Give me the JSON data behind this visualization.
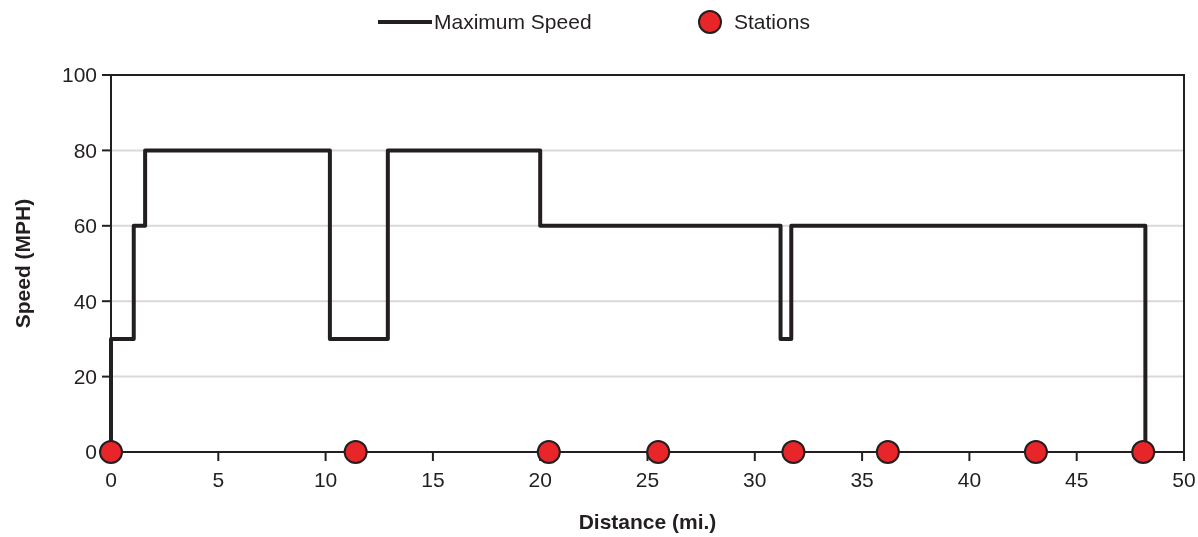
{
  "chart_data": {
    "type": "step",
    "xlabel": "Distance (mi.)",
    "ylabel": "Speed (MPH)",
    "xlim": [
      0,
      50
    ],
    "xticks": [
      0,
      5,
      10,
      15,
      20,
      25,
      30,
      35,
      40,
      45,
      50
    ],
    "ylim": [
      0,
      100
    ],
    "yticks": [
      0,
      20,
      40,
      60,
      80,
      100
    ],
    "grid": "y",
    "legend": "top",
    "series": [
      {
        "name": "Maximum Speed",
        "color": "#231f20",
        "x": [
          0,
          0,
          1.06,
          1.59,
          10.2,
          12.9,
          20.0,
          31.2,
          31.7,
          48.2
        ],
        "values": [
          0,
          30,
          60,
          80,
          30,
          80,
          60,
          30,
          60,
          0
        ]
      },
      {
        "name": "Stations",
        "type": "scatter",
        "color": "#e8262a",
        "marker": "circle",
        "x": [
          0,
          11.4,
          20.4,
          25.5,
          31.8,
          36.2,
          43.1,
          48.1
        ],
        "values": [
          0,
          0,
          0,
          0,
          0,
          0,
          0,
          0
        ]
      }
    ]
  }
}
